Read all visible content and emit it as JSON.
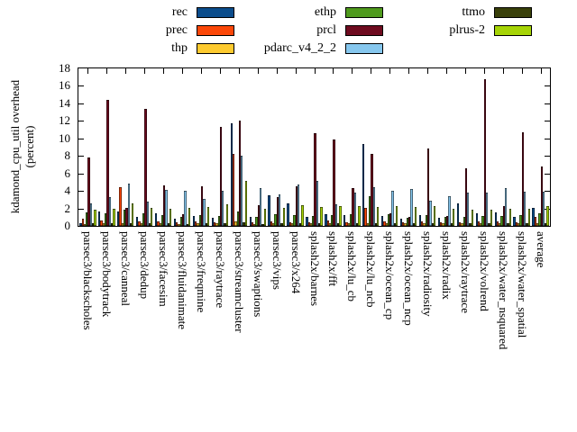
{
  "ylabel_line1": "kdamond_cpu_util overhead",
  "ylabel_line2": "(percent)",
  "chart_data": {
    "type": "bar",
    "grouped": true,
    "title": "",
    "xlabel": "",
    "ylabel": "kdamond_cpu_util overhead (percent)",
    "ylim": [
      0,
      18
    ],
    "ytick_step": 2,
    "grid": false,
    "legend_position": "top",
    "categories": [
      "parsec3/blackscholes",
      "parsec3/bodytrack",
      "parsec3/canneal",
      "parsec3/dedup",
      "parsec3/facesim",
      "parsec3/fluidanimate",
      "parsec3/freqmine",
      "parsec3/raytrace",
      "parsec3/streamcluster",
      "parsec3/swaptions",
      "parsec3/vips",
      "parsec3/x264",
      "splash2x/barnes",
      "splash2x/fft",
      "splash2x/lu_cb",
      "splash2x/lu_ncb",
      "splash2x/ocean_cp",
      "splash2x/ocean_ncp",
      "splash2x/radiosity",
      "splash2x/radix",
      "splash2x/raytrace",
      "splash2x/volrend",
      "splash2x/water_nsquared",
      "splash2x/water_spatial",
      "average"
    ],
    "series": [
      {
        "name": "rec",
        "color": "#0b4d8c",
        "values": [
          0.3,
          1.7,
          1.7,
          1.0,
          1.4,
          0.8,
          1.1,
          0.9,
          11.7,
          1.0,
          3.5,
          2.6,
          1.0,
          1.3,
          1.2,
          9.4,
          1.1,
          0.8,
          1.2,
          0.9,
          2.6,
          1.4,
          1.5,
          1.0,
          2.1
        ]
      },
      {
        "name": "prec",
        "color": "#fb4708",
        "values": [
          0.8,
          0.6,
          4.4,
          0.5,
          0.5,
          0.4,
          0.5,
          0.4,
          8.2,
          0.4,
          0.5,
          0.4,
          0.4,
          0.6,
          0.4,
          2.1,
          0.5,
          0.4,
          0.5,
          0.4,
          0.4,
          0.5,
          0.5,
          0.4,
          1.0
        ]
      },
      {
        "name": "thp",
        "color": "#fdca2f",
        "values": [
          0.2,
          0.3,
          0.3,
          0.3,
          0.3,
          0.2,
          0.3,
          0.3,
          0.5,
          0.2,
          0.3,
          0.3,
          0.3,
          0.3,
          0.3,
          0.3,
          0.3,
          0.3,
          0.3,
          0.3,
          0.3,
          0.3,
          0.3,
          0.3,
          0.3
        ]
      },
      {
        "name": "ethp",
        "color": "#4f9a1d",
        "values": [
          1.5,
          1.4,
          1.9,
          1.4,
          1.2,
          1.0,
          1.2,
          1.1,
          1.7,
          1.0,
          1.3,
          1.2,
          1.1,
          1.2,
          1.3,
          3.4,
          1.3,
          0.9,
          1.2,
          1.0,
          1.0,
          1.1,
          1.1,
          1.2,
          1.4
        ]
      },
      {
        "name": "prcl",
        "color": "#6e0b1f",
        "values": [
          7.8,
          14.4,
          2.1,
          13.4,
          4.6,
          1.3,
          4.5,
          11.3,
          12.0,
          2.4,
          3.3,
          4.5,
          10.6,
          9.9,
          4.3,
          8.2,
          1.4,
          1.0,
          8.9,
          1.1,
          6.6,
          16.8,
          2.3,
          10.7,
          6.8
        ]
      },
      {
        "name": "pdarc_v4_2_2",
        "color": "#86c7ee",
        "values": [
          2.6,
          3.3,
          4.8,
          2.8,
          4.1,
          4.0,
          3.1,
          4.0,
          8.0,
          4.3,
          3.6,
          4.7,
          5.1,
          2.5,
          3.8,
          4.4,
          4.0,
          4.2,
          2.9,
          3.4,
          3.8,
          3.8,
          4.3,
          3.9,
          3.9
        ]
      },
      {
        "name": "ttmo",
        "color": "#39400a",
        "values": [
          0.3,
          0.3,
          0.3,
          0.3,
          0.3,
          0.2,
          0.3,
          0.3,
          0.4,
          0.2,
          0.3,
          0.3,
          0.3,
          0.3,
          0.3,
          0.3,
          0.3,
          0.3,
          0.3,
          0.3,
          0.3,
          0.3,
          0.3,
          0.3,
          0.3
        ]
      },
      {
        "name": "plrus-2",
        "color": "#a6d406",
        "values": [
          1.9,
          2.0,
          2.6,
          2.1,
          2.0,
          2.1,
          2.2,
          2.5,
          5.1,
          2.0,
          2.1,
          2.4,
          2.2,
          2.3,
          2.3,
          2.2,
          2.3,
          2.2,
          2.3,
          2.0,
          1.9,
          1.9,
          2.0,
          2.0,
          2.3
        ]
      }
    ]
  }
}
